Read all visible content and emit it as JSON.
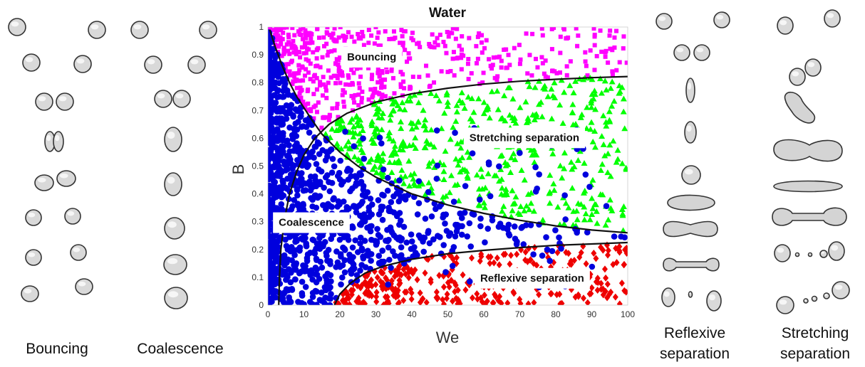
{
  "captions": {
    "bouncing": "Bouncing",
    "coalescence": "Coalescence",
    "reflexive": [
      "Reflexive",
      "separation"
    ],
    "stretching": [
      "Stretching",
      "separation"
    ]
  },
  "colors": {
    "bouncing": "#ff00ff",
    "stretching": "#00ff00",
    "coalescence": "#0000dd",
    "reflexive": "#ee0000",
    "boundary": "#111111"
  },
  "chart_data": {
    "type": "scatter",
    "title": "Water",
    "xlabel": "We",
    "ylabel": "B",
    "xlim": [
      0,
      100
    ],
    "ylim": [
      0,
      1
    ],
    "xticks": [
      0,
      10,
      20,
      30,
      40,
      50,
      60,
      70,
      80,
      90,
      100
    ],
    "yticks": [
      0,
      0.1,
      0.2,
      0.3,
      0.4,
      0.5,
      0.6,
      0.7,
      0.8,
      0.9,
      1
    ],
    "region_labels": [
      {
        "text": "Bouncing",
        "We": 22,
        "B": 0.88
      },
      {
        "text": "Stretching separation",
        "We": 56,
        "B": 0.59
      },
      {
        "text": "Coalescence",
        "We": 3,
        "B": 0.285
      },
      {
        "text": "Reflexive separation",
        "We": 59,
        "B": 0.085
      }
    ],
    "series": [
      {
        "name": "Bouncing",
        "marker": "square",
        "color": "#ff00ff",
        "region": "bouncing"
      },
      {
        "name": "Stretching separation",
        "marker": "triangle",
        "color": "#00ff00",
        "region": "stretching"
      },
      {
        "name": "Coalescence",
        "marker": "circle",
        "color": "#0000dd",
        "region": "coalescence"
      },
      {
        "name": "Reflexive separation",
        "marker": "diamond",
        "color": "#ee0000",
        "region": "reflexive"
      }
    ],
    "boundaries": [
      {
        "name": "bouncing-coalescence",
        "points": [
          [
            0.5,
            0.99
          ],
          [
            2,
            0.93
          ],
          [
            4,
            0.86
          ],
          [
            6,
            0.8
          ],
          [
            8,
            0.75
          ],
          [
            10,
            0.71
          ],
          [
            12,
            0.67
          ],
          [
            15,
            0.615
          ],
          [
            20,
            0.55
          ],
          [
            25,
            0.5
          ],
          [
            30,
            0.46
          ],
          [
            40,
            0.4
          ],
          [
            50,
            0.36
          ],
          [
            60,
            0.33
          ],
          [
            70,
            0.305
          ],
          [
            80,
            0.285
          ],
          [
            90,
            0.27
          ],
          [
            100,
            0.26
          ]
        ]
      },
      {
        "name": "coalescence-stretching",
        "points": [
          [
            3,
            0.0
          ],
          [
            3.2,
            0.1
          ],
          [
            3.6,
            0.2
          ],
          [
            4.5,
            0.3
          ],
          [
            6,
            0.4
          ],
          [
            8,
            0.48
          ],
          [
            10,
            0.54
          ],
          [
            13,
            0.6
          ],
          [
            17,
            0.65
          ],
          [
            22,
            0.69
          ],
          [
            30,
            0.73
          ],
          [
            40,
            0.76
          ],
          [
            50,
            0.78
          ],
          [
            60,
            0.795
          ],
          [
            70,
            0.805
          ],
          [
            80,
            0.812
          ],
          [
            90,
            0.818
          ],
          [
            100,
            0.822
          ]
        ]
      },
      {
        "name": "coalescence-reflexive",
        "points": [
          [
            18.5,
            0.0
          ],
          [
            20,
            0.04
          ],
          [
            23,
            0.08
          ],
          [
            27,
            0.115
          ],
          [
            32,
            0.14
          ],
          [
            40,
            0.165
          ],
          [
            50,
            0.185
          ],
          [
            60,
            0.197
          ],
          [
            70,
            0.207
          ],
          [
            80,
            0.215
          ],
          [
            90,
            0.22
          ],
          [
            100,
            0.225
          ]
        ]
      }
    ]
  }
}
